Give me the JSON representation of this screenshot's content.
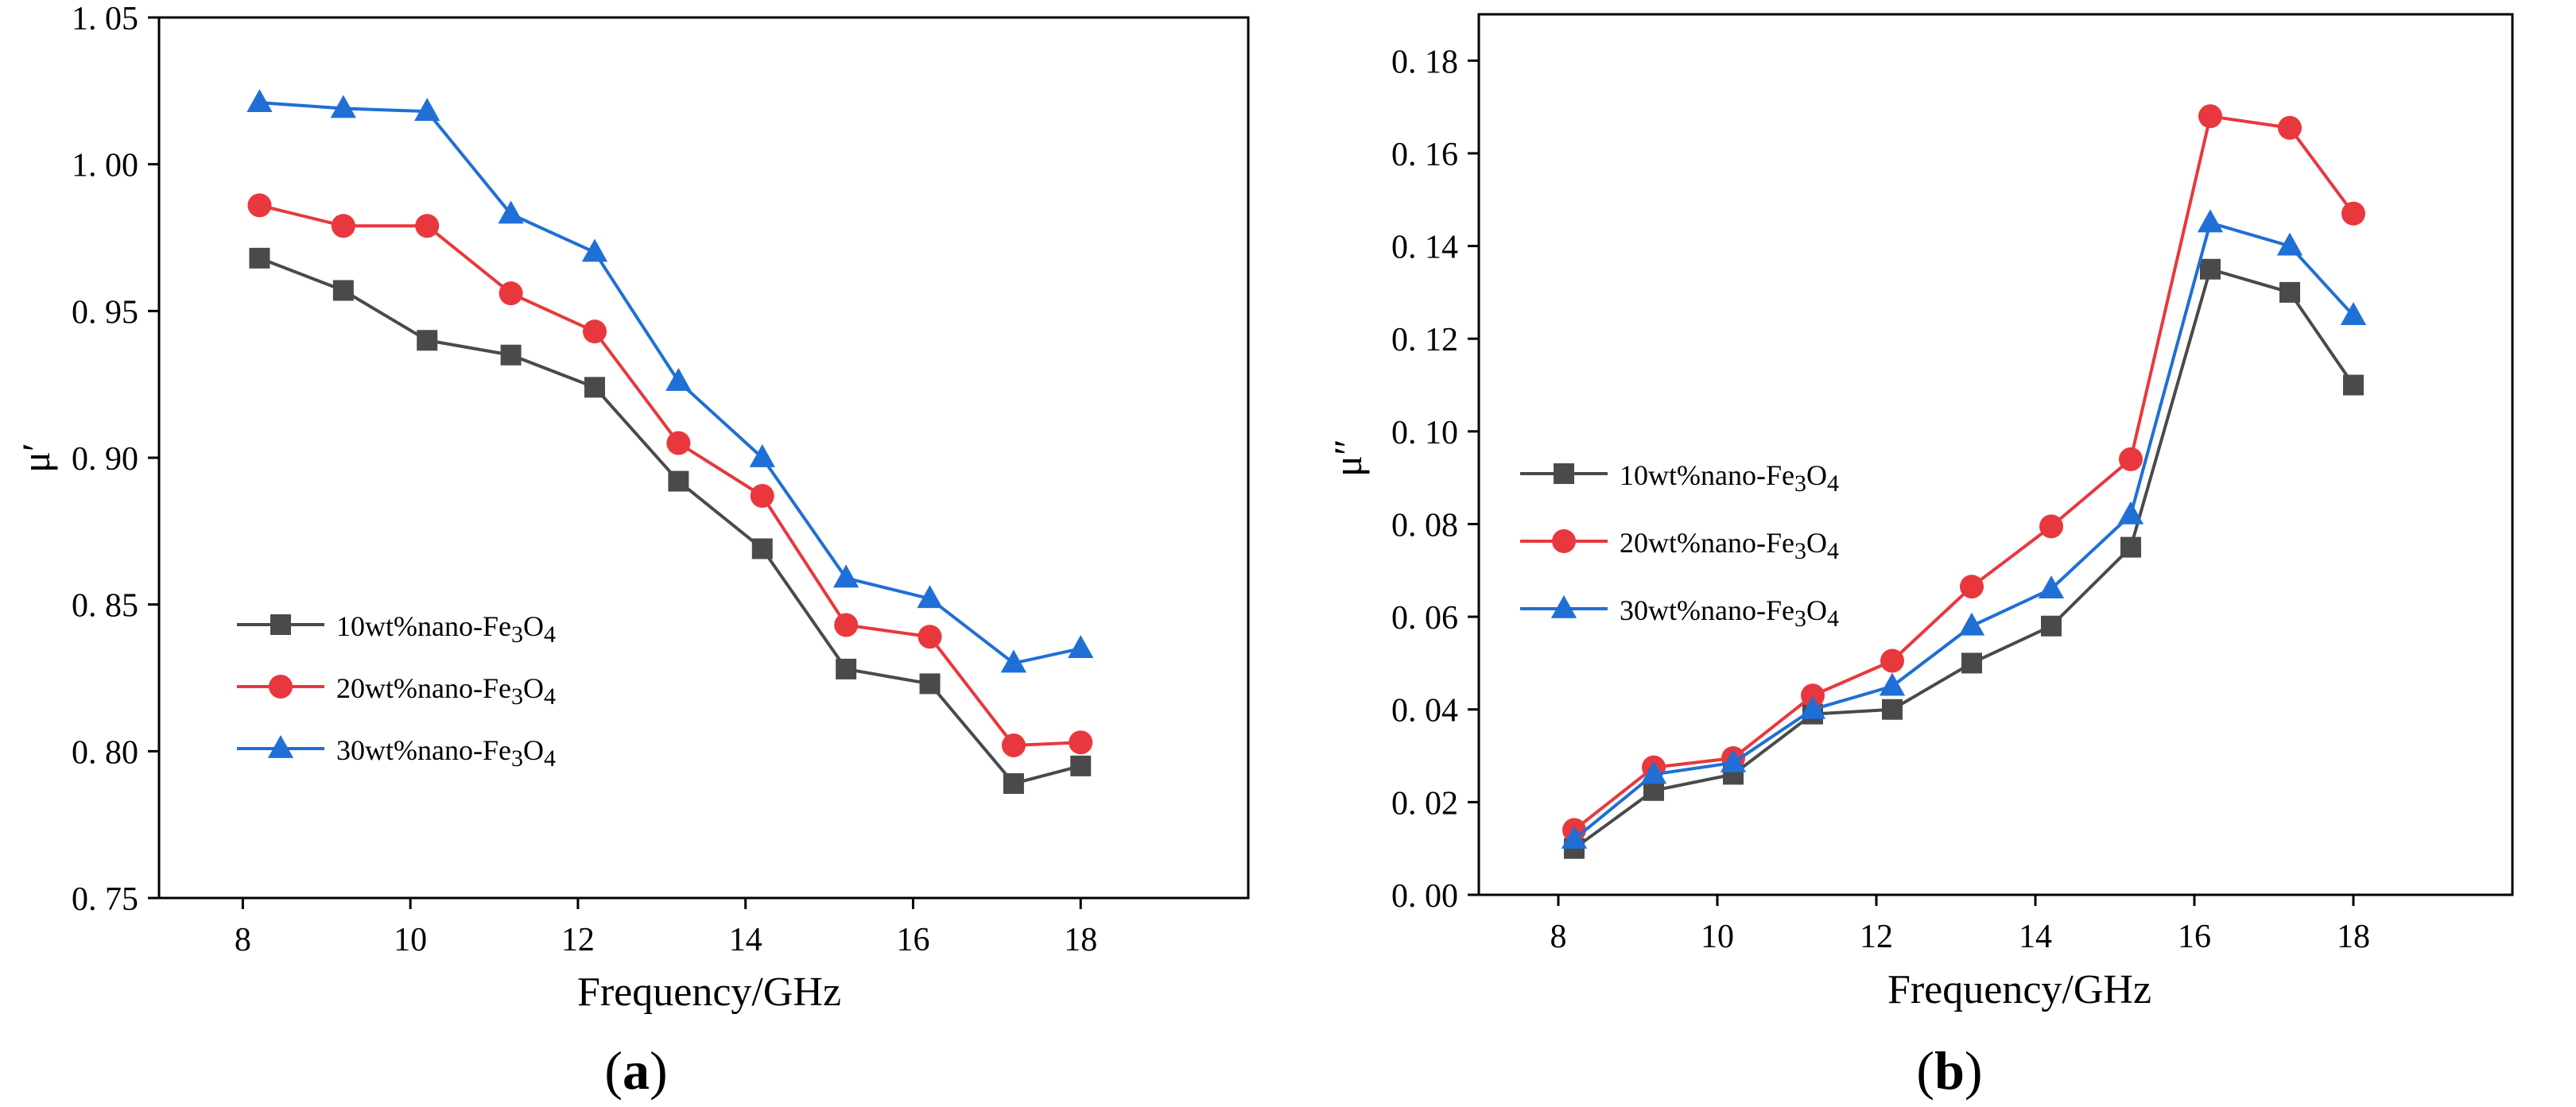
{
  "panels": [
    {
      "label_open": "(",
      "label_letter": "a",
      "label_close": ")",
      "ylabel": "μ′",
      "xlabel": "Frequency/GHz",
      "legend_prefix": "nano-Fe",
      "legend_sub1": "3",
      "legend_mid": "O",
      "legend_sub2": "4"
    },
    {
      "label_open": "(",
      "label_letter": "b",
      "label_close": ")",
      "ylabel": "μ″",
      "xlabel": "Frequency/GHz",
      "legend_prefix": "nano-Fe",
      "legend_sub1": "3",
      "legend_mid": "O",
      "legend_sub2": "4"
    }
  ],
  "chart_data": [
    {
      "type": "line",
      "title": "",
      "xlabel": "Frequency/GHz",
      "ylabel": "μ′",
      "xlim": [
        7,
        20
      ],
      "ylim": [
        0.75,
        1.05
      ],
      "xticks": [
        8,
        10,
        12,
        14,
        16,
        18
      ],
      "yticks": [
        0.75,
        0.8,
        0.85,
        0.9,
        0.95,
        1.0,
        1.05
      ],
      "xtick_labels": [
        "8",
        "10",
        "12",
        "14",
        "16",
        "18"
      ],
      "ytick_labels": [
        "0. 75",
        "0. 80",
        "0. 85",
        "0. 90",
        "0. 95",
        "1. 00",
        "1. 05"
      ],
      "grid": false,
      "legend_position": "lower-left",
      "x": [
        8.2,
        9.2,
        10.2,
        11.2,
        12.2,
        13.2,
        14.2,
        15.2,
        16.2,
        17.2,
        18.0
      ],
      "series": [
        {
          "name": "10wt%nano-Fe3O4",
          "label_prefix": "10wt%",
          "marker": "square",
          "color": "#4a4a4a",
          "values": [
            0.968,
            0.957,
            0.94,
            0.935,
            0.924,
            0.892,
            0.869,
            0.828,
            0.823,
            0.789,
            0.795
          ]
        },
        {
          "name": "20wt%nano-Fe3O4",
          "label_prefix": "20wt%",
          "marker": "circle",
          "color": "#e8383d",
          "values": [
            0.986,
            0.979,
            0.979,
            0.956,
            0.943,
            0.905,
            0.887,
            0.843,
            0.839,
            0.802,
            0.803
          ]
        },
        {
          "name": "30wt%nano-Fe3O4",
          "label_prefix": "30wt%",
          "marker": "triangle",
          "color": "#1f6fd6",
          "values": [
            1.021,
            1.019,
            1.018,
            0.983,
            0.97,
            0.926,
            0.9,
            0.859,
            0.852,
            0.83,
            0.835
          ]
        }
      ]
    },
    {
      "type": "line",
      "title": "",
      "xlabel": "Frequency/GHz",
      "ylabel": "μ″",
      "xlim": [
        7,
        20
      ],
      "ylim": [
        0.0,
        0.19
      ],
      "xticks": [
        8,
        10,
        12,
        14,
        16,
        18
      ],
      "yticks": [
        0.0,
        0.02,
        0.04,
        0.06,
        0.08,
        0.1,
        0.12,
        0.14,
        0.16,
        0.18
      ],
      "xtick_labels": [
        "8",
        "10",
        "12",
        "14",
        "16",
        "18"
      ],
      "ytick_labels": [
        "0. 00",
        "0. 02",
        "0. 04",
        "0. 06",
        "0. 08",
        "0. 10",
        "0. 12",
        "0. 14",
        "0. 16",
        "0. 18"
      ],
      "grid": false,
      "legend_position": "upper-left",
      "x": [
        8.2,
        9.2,
        10.2,
        11.2,
        12.2,
        13.2,
        14.2,
        15.2,
        16.2,
        17.2,
        18.0
      ],
      "series": [
        {
          "name": "10wt%nano-Fe3O4",
          "label_prefix": "10wt%",
          "marker": "square",
          "color": "#4a4a4a",
          "values": [
            0.01,
            0.0225,
            0.026,
            0.039,
            0.04,
            0.05,
            0.058,
            0.075,
            0.135,
            0.13,
            0.11
          ]
        },
        {
          "name": "20wt%nano-Fe3O4",
          "label_prefix": "20wt%",
          "marker": "circle",
          "color": "#e8383d",
          "values": [
            0.014,
            0.0275,
            0.0295,
            0.043,
            0.0505,
            0.0665,
            0.0795,
            0.094,
            0.168,
            0.1655,
            0.147
          ]
        },
        {
          "name": "30wt%nano-Fe3O4",
          "label_prefix": "30wt%",
          "marker": "triangle",
          "color": "#1f6fd6",
          "values": [
            0.012,
            0.026,
            0.0285,
            0.04,
            0.045,
            0.058,
            0.066,
            0.082,
            0.145,
            0.14,
            0.125
          ]
        }
      ]
    }
  ]
}
